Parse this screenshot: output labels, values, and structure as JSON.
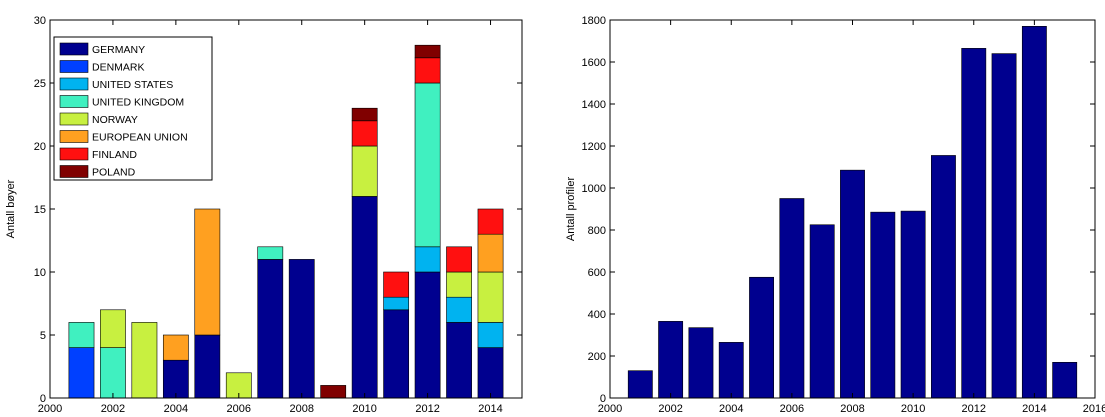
{
  "colors": {
    "GERMANY": "#00008f",
    "DENMARK": "#0040ff",
    "UNITED STATES": "#00b3f0",
    "UNITED KINGDOM": "#40f0c0",
    "NORWAY": "#c8f040",
    "EUROPEAN UNION": "#ffa020",
    "FINLAND": "#ff1010",
    "POLAND": "#800000",
    "bar_single": "#00008f"
  },
  "chart_data": [
    {
      "type": "bar",
      "stacked": true,
      "ylabel": "Antall bøyer",
      "xlabel": "",
      "title": "",
      "xlim": [
        2000,
        2015
      ],
      "ylim": [
        0,
        30
      ],
      "xticks": [
        "2000",
        "2002",
        "2004",
        "2006",
        "2008",
        "2010",
        "2012",
        "2014"
      ],
      "yticks": [
        "0",
        "5",
        "10",
        "15",
        "20",
        "25",
        "30"
      ],
      "legend_position": "top-left",
      "x": [
        2001,
        2002,
        2003,
        2004,
        2005,
        2006,
        2007,
        2008,
        2009,
        2010,
        2011,
        2012,
        2013,
        2014
      ],
      "series": [
        {
          "name": "GERMANY",
          "values": [
            0,
            0,
            0,
            3,
            5,
            0,
            11,
            11,
            0,
            16,
            7,
            10,
            6,
            4
          ]
        },
        {
          "name": "DENMARK",
          "values": [
            4,
            0,
            0,
            0,
            0,
            0,
            0,
            0,
            0,
            0,
            0,
            0,
            0,
            0
          ]
        },
        {
          "name": "UNITED STATES",
          "values": [
            0,
            0,
            0,
            0,
            0,
            0,
            0,
            0,
            0,
            0,
            1,
            2,
            2,
            2
          ]
        },
        {
          "name": "UNITED KINGDOM",
          "values": [
            2,
            4,
            0,
            0,
            0,
            0,
            1,
            0,
            0,
            0,
            0,
            13,
            0,
            0
          ]
        },
        {
          "name": "NORWAY",
          "values": [
            0,
            3,
            6,
            0,
            0,
            2,
            0,
            0,
            0,
            4,
            0,
            0,
            2,
            4
          ]
        },
        {
          "name": "EUROPEAN UNION",
          "values": [
            0,
            0,
            0,
            2,
            10,
            0,
            0,
            0,
            0,
            0,
            0,
            0,
            0,
            3
          ]
        },
        {
          "name": "FINLAND",
          "values": [
            0,
            0,
            0,
            0,
            0,
            0,
            0,
            0,
            0,
            2,
            2,
            2,
            2,
            2
          ]
        },
        {
          "name": "POLAND",
          "values": [
            0,
            0,
            0,
            0,
            0,
            0,
            0,
            0,
            1,
            1,
            0,
            1,
            0,
            0
          ]
        }
      ]
    },
    {
      "type": "bar",
      "ylabel": "Antall profiler",
      "xlabel": "",
      "title": "",
      "xlim": [
        2000,
        2016
      ],
      "ylim": [
        0,
        1800
      ],
      "xticks": [
        "2000",
        "2002",
        "2004",
        "2006",
        "2008",
        "2010",
        "2012",
        "2014",
        "2016"
      ],
      "yticks": [
        "0",
        "200",
        "400",
        "600",
        "800",
        "1000",
        "1200",
        "1400",
        "1600",
        "1800"
      ],
      "x": [
        2001,
        2002,
        2003,
        2004,
        2005,
        2006,
        2007,
        2008,
        2009,
        2010,
        2011,
        2012,
        2013,
        2014,
        2015
      ],
      "values": [
        130,
        365,
        335,
        265,
        575,
        950,
        825,
        1085,
        885,
        890,
        1155,
        1665,
        1640,
        1770,
        170
      ]
    }
  ]
}
